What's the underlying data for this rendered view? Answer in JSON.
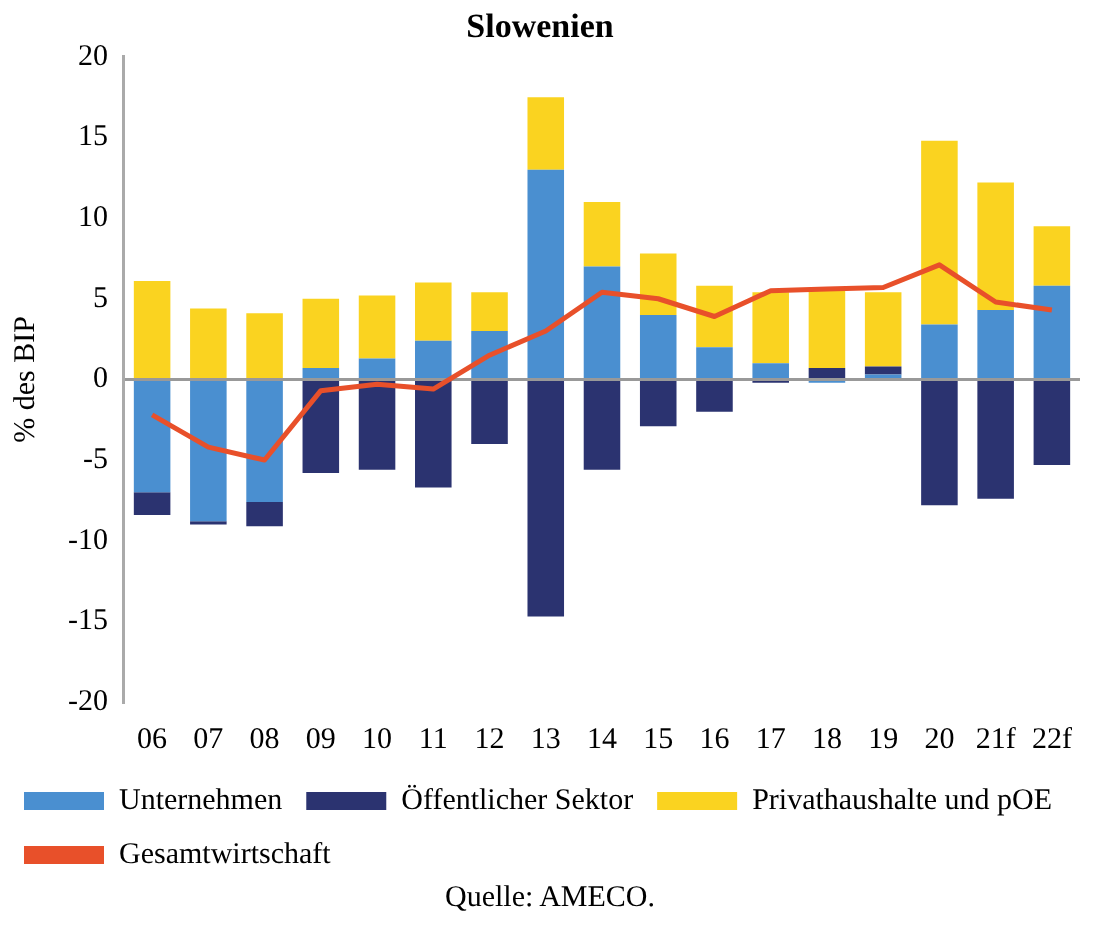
{
  "chart_data": {
    "type": "bar",
    "stacked": true,
    "title": "Slowenien",
    "ylabel": "% des BIP",
    "categories": [
      "06",
      "07",
      "08",
      "09",
      "10",
      "11",
      "12",
      "13",
      "14",
      "15",
      "16",
      "17",
      "18",
      "19",
      "20",
      "21f",
      "22f"
    ],
    "series": [
      {
        "name": "Unternehmen",
        "color": "#4a8fd0",
        "values": [
          -7.0,
          -8.8,
          -7.6,
          0.7,
          1.3,
          2.4,
          3.0,
          13.0,
          7.0,
          4.0,
          2.0,
          1.0,
          -0.2,
          0.3,
          3.4,
          4.3,
          5.8
        ]
      },
      {
        "name": "Öffentlicher Sektor",
        "color": "#2b3370",
        "values": [
          -1.4,
          -0.2,
          -1.5,
          -5.8,
          -5.6,
          -6.7,
          -4.0,
          -14.7,
          -5.6,
          -2.9,
          -2.0,
          -0.2,
          0.7,
          0.5,
          -7.8,
          -7.4,
          -5.3
        ]
      },
      {
        "name": "Privathaushalte und pOE",
        "color": "#fad320",
        "values": [
          6.1,
          4.4,
          4.1,
          4.3,
          3.9,
          3.6,
          2.4,
          4.5,
          4.0,
          3.8,
          3.8,
          4.4,
          4.9,
          4.6,
          11.4,
          7.9,
          3.7
        ]
      },
      {
        "name": "Gesamtwirtschaft",
        "type": "line",
        "color": "#e8502a",
        "values": [
          -2.2,
          -4.2,
          -5.0,
          -0.7,
          -0.3,
          -0.6,
          1.5,
          3.0,
          5.4,
          5.0,
          3.9,
          5.5,
          5.6,
          5.7,
          7.1,
          4.8,
          4.3
        ]
      }
    ],
    "ylim": [
      -20,
      20
    ],
    "yticks": [
      -20,
      -15,
      -10,
      -5,
      0,
      5,
      10,
      15,
      20
    ],
    "legend": "bottom",
    "marker": "none",
    "annotations": [
      "Quelle: AMECO."
    ]
  }
}
